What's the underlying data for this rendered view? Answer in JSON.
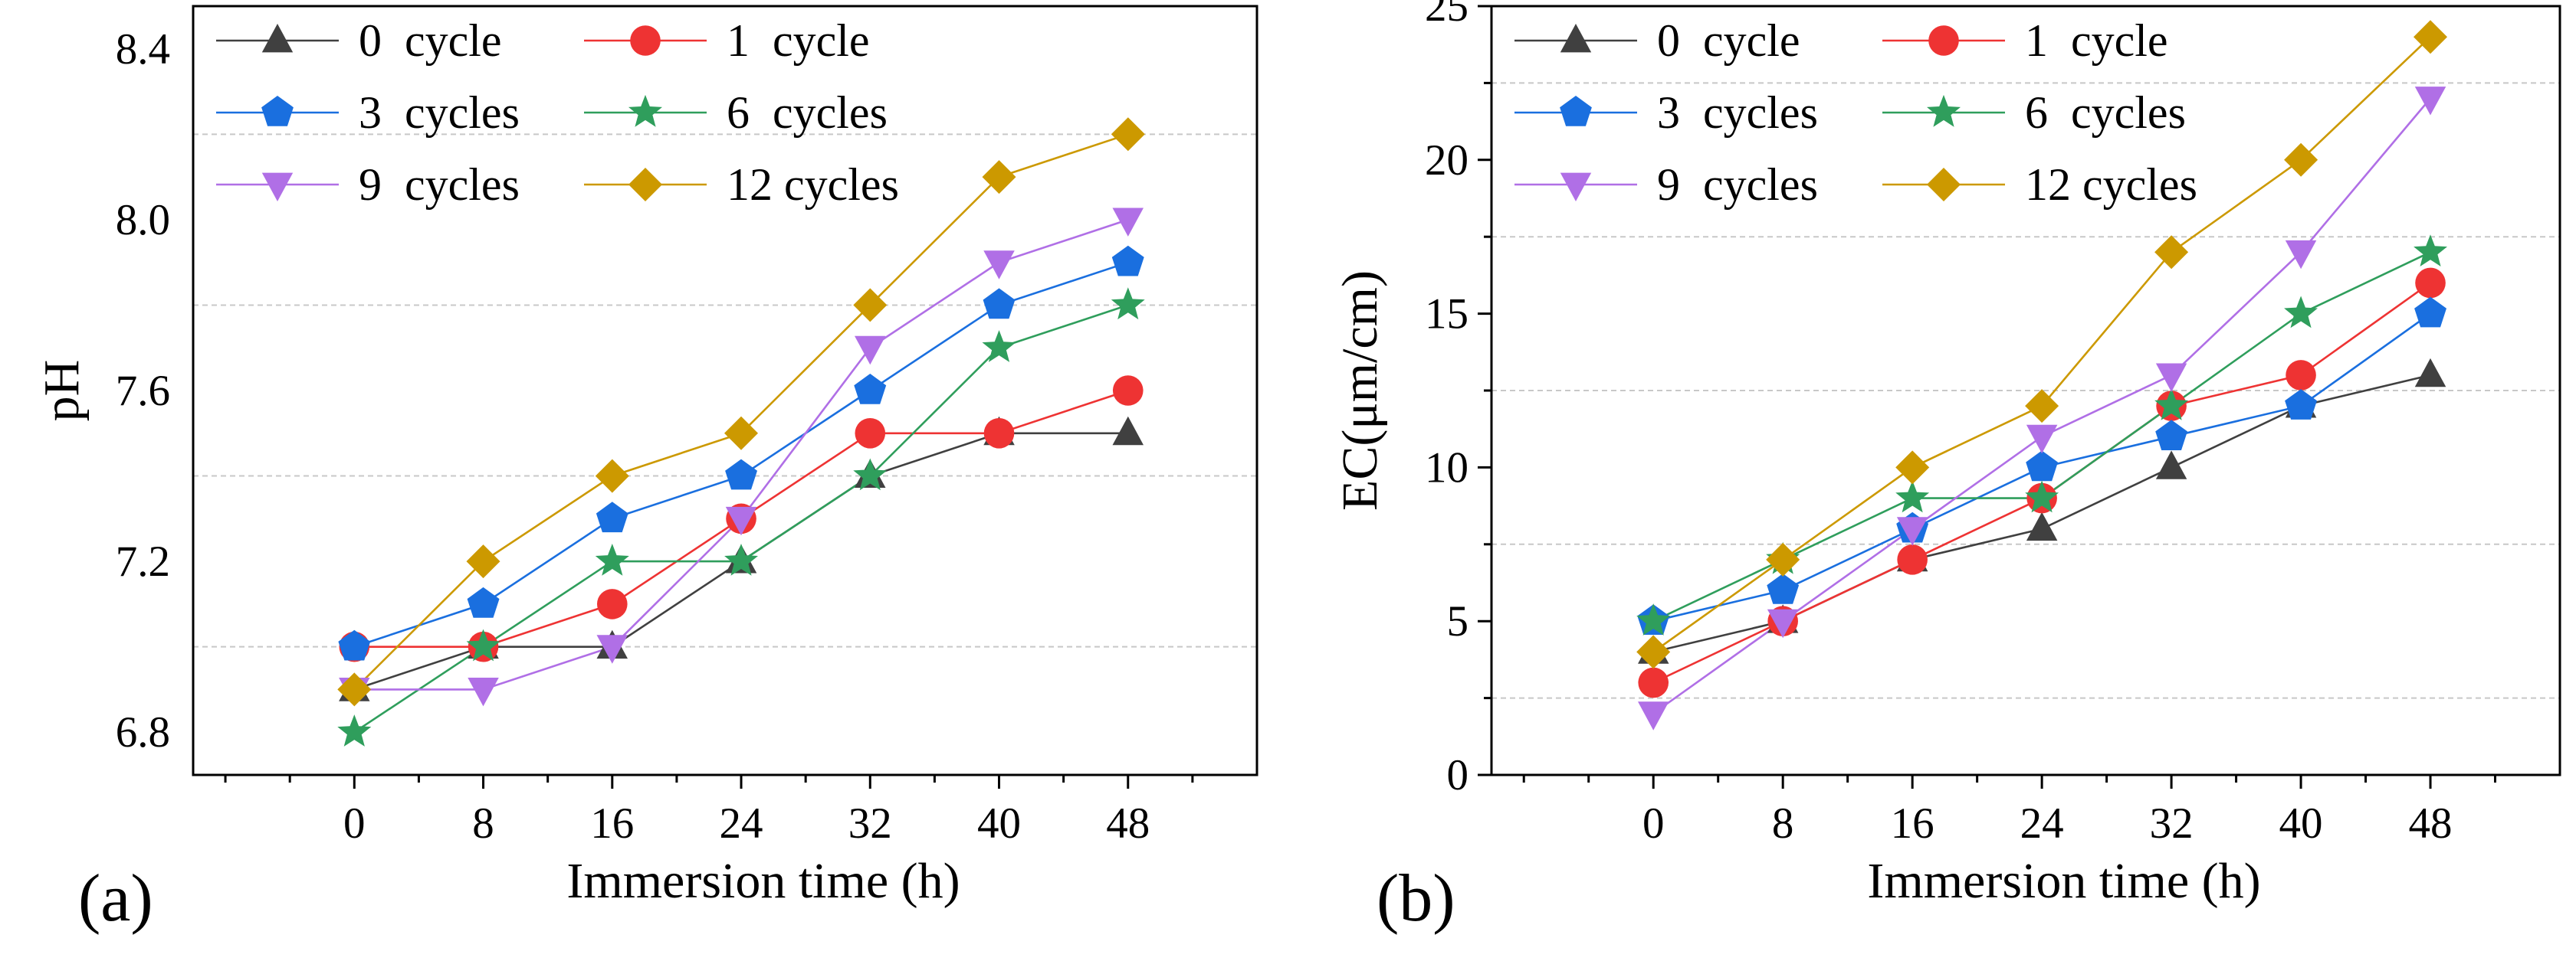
{
  "chart_data": [
    {
      "panel_label": "(a)",
      "type": "line",
      "title": "",
      "xlabel": "Immersion time (h)",
      "ylabel": "pH",
      "xlim": [
        -10,
        56
      ],
      "ylim": [
        6.7,
        8.5
      ],
      "xticks": [
        0,
        8,
        16,
        24,
        32,
        40,
        48
      ],
      "xtick_labels": [
        "0",
        "8",
        "16",
        "24",
        "32",
        "40",
        "48"
      ],
      "yticks": [
        6.8,
        7.2,
        7.6,
        8.0,
        8.4
      ],
      "ytick_labels": [
        "6.8",
        "7.2",
        "7.6",
        "8.0",
        "8.4"
      ],
      "gridlines": [
        7.0,
        7.4,
        7.8,
        8.2
      ],
      "legend_position": "top-left",
      "x": [
        0,
        8,
        16,
        24,
        32,
        40,
        48
      ],
      "series": [
        {
          "name": "0  cycle",
          "color": "#404040",
          "marker": "triangle-up",
          "values": [
            6.9,
            7.0,
            7.0,
            7.2,
            7.4,
            7.5,
            7.5
          ]
        },
        {
          "name": "1  cycle",
          "color": "#ee3333",
          "marker": "circle",
          "values": [
            7.0,
            7.0,
            7.1,
            7.3,
            7.5,
            7.5,
            7.6
          ]
        },
        {
          "name": "3  cycles",
          "color": "#1a6fdf",
          "marker": "pentagon",
          "values": [
            7.0,
            7.1,
            7.3,
            7.4,
            7.6,
            7.8,
            7.9
          ]
        },
        {
          "name": "6  cycles",
          "color": "#2f9e5c",
          "marker": "star",
          "values": [
            6.8,
            7.0,
            7.2,
            7.2,
            7.4,
            7.7,
            7.8
          ]
        },
        {
          "name": "9  cycles",
          "color": "#b06fe6",
          "marker": "triangle-down",
          "values": [
            6.9,
            6.9,
            7.0,
            7.3,
            7.7,
            7.9,
            8.0
          ]
        },
        {
          "name": "12 cycles",
          "color": "#cc9900",
          "marker": "diamond",
          "values": [
            6.9,
            7.2,
            7.4,
            7.5,
            7.8,
            8.1,
            8.2
          ]
        }
      ]
    },
    {
      "panel_label": "(b)",
      "type": "line",
      "title": "",
      "xlabel": "Immersion time (h)",
      "ylabel": "EC(μm/cm)",
      "xlim": [
        -10,
        56
      ],
      "ylim": [
        0,
        25
      ],
      "xticks": [
        0,
        8,
        16,
        24,
        32,
        40,
        48
      ],
      "xtick_labels": [
        "0",
        "8",
        "16",
        "24",
        "32",
        "40",
        "48"
      ],
      "yticks": [
        0,
        5,
        10,
        15,
        20,
        25
      ],
      "ytick_labels": [
        "0",
        "5",
        "10",
        "15",
        "20",
        "25"
      ],
      "gridlines": [
        2.5,
        7.5,
        12.5,
        17.5,
        22.5
      ],
      "legend_position": "top-left",
      "x": [
        0,
        8,
        16,
        24,
        32,
        40,
        48
      ],
      "series": [
        {
          "name": "0  cycle",
          "color": "#404040",
          "marker": "triangle-up",
          "values": [
            4,
            5,
            7,
            8,
            10,
            12,
            13
          ]
        },
        {
          "name": "1  cycle",
          "color": "#ee3333",
          "marker": "circle",
          "values": [
            3,
            5,
            7,
            9,
            12,
            13,
            16
          ]
        },
        {
          "name": "3  cycles",
          "color": "#1a6fdf",
          "marker": "pentagon",
          "values": [
            5,
            6,
            8,
            10,
            11,
            12,
            15
          ]
        },
        {
          "name": "6  cycles",
          "color": "#2f9e5c",
          "marker": "star",
          "values": [
            5,
            7,
            9,
            9,
            12,
            15,
            17
          ]
        },
        {
          "name": "9  cycles",
          "color": "#b06fe6",
          "marker": "triangle-down",
          "values": [
            2,
            5,
            8,
            11,
            13,
            17,
            22
          ]
        },
        {
          "name": "12 cycles",
          "color": "#cc9900",
          "marker": "diamond",
          "values": [
            4,
            7,
            10,
            12,
            17,
            20,
            24
          ]
        }
      ]
    }
  ]
}
